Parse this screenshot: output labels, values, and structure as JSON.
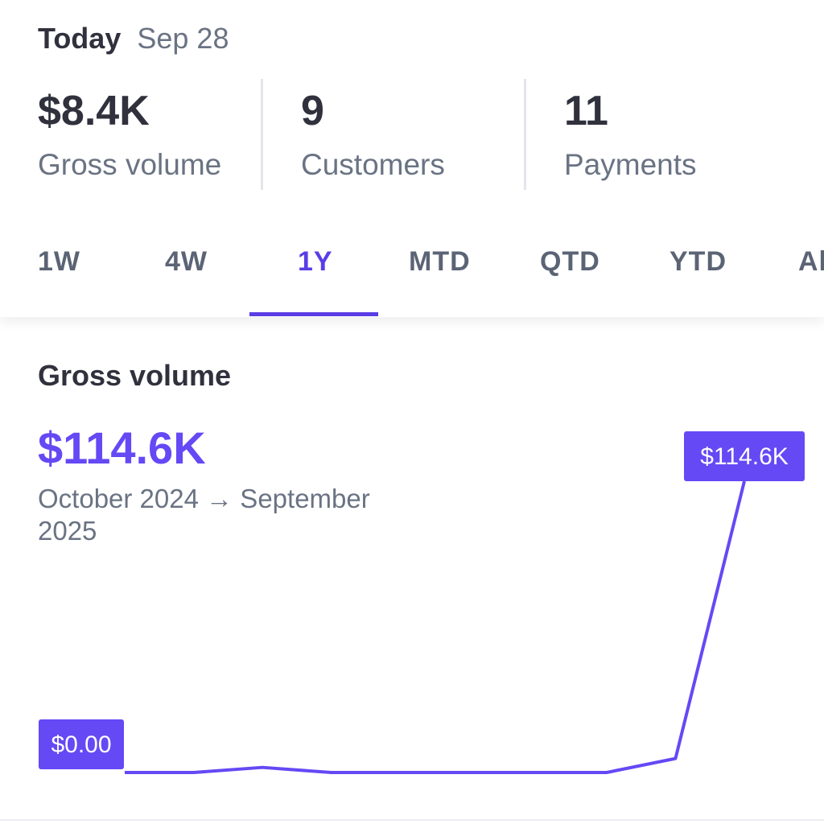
{
  "today": {
    "label": "Today",
    "date": "Sep 28"
  },
  "stats": [
    {
      "value": "$8.4K",
      "label": "Gross volume"
    },
    {
      "value": "9",
      "label": "Customers"
    },
    {
      "value": "11",
      "label": "Payments"
    }
  ],
  "tabs": [
    "1W",
    "4W",
    "1Y",
    "MTD",
    "QTD",
    "YTD",
    "All"
  ],
  "active_tab": "1Y",
  "chart_section": {
    "title": "Gross volume",
    "total": "$114.6K",
    "range": "October 2024 → September 2025"
  },
  "colors": {
    "accent": "#6449f5",
    "text": "#30313d",
    "muted": "#6a7383"
  },
  "chart_data": {
    "type": "line",
    "values": [
      0,
      0,
      2.0,
      0,
      0,
      0,
      0,
      0,
      5.5,
      114.6
    ],
    "unit": "$K",
    "ylim": [
      0,
      114.6
    ],
    "min_label": "$0.00",
    "max_label": "$114.6K",
    "grid": false,
    "legend": "none"
  }
}
